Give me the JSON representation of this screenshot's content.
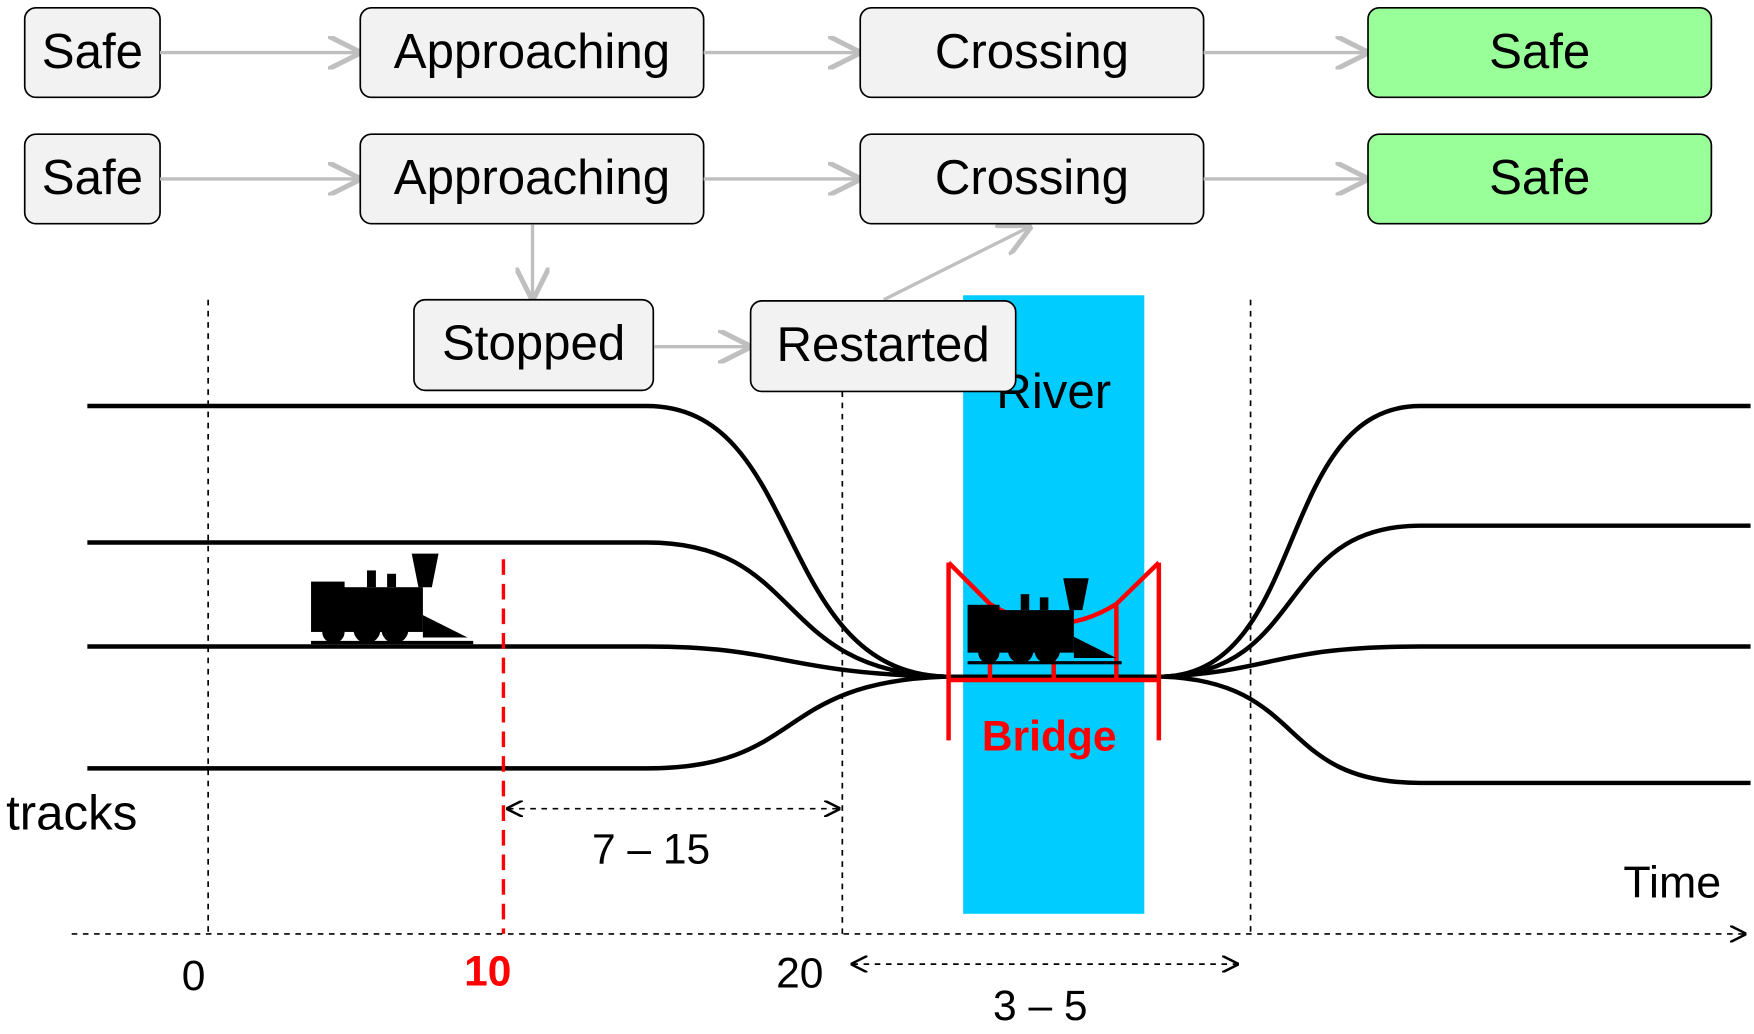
{
  "rows": [
    {
      "states": [
        "Safe",
        "Approaching",
        "Crossing",
        "Safe"
      ]
    },
    {
      "states": [
        "Safe",
        "Approaching",
        "Crossing",
        "Safe"
      ]
    }
  ],
  "detour": [
    "Stopped",
    "Restarted"
  ],
  "river": "River",
  "bridge": "Bridge",
  "tracks": "tracks",
  "time_axis": {
    "label": "Time",
    "ticks": [
      "0",
      "10",
      "20"
    ]
  },
  "intervals": [
    "7 – 15",
    "3 – 5"
  ]
}
